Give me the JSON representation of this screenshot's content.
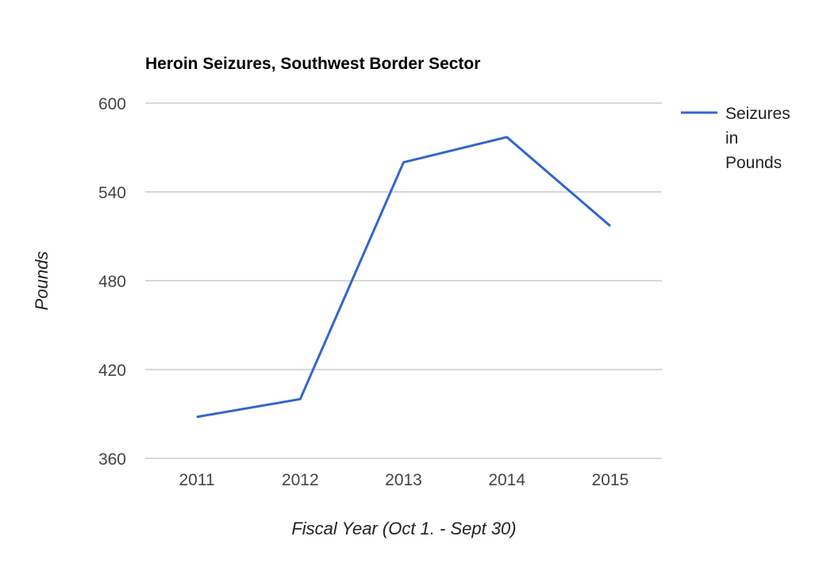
{
  "chart_data": {
    "type": "line",
    "title": "Heroin Seizures, Southwest Border Sector",
    "xlabel": "Fiscal Year (Oct 1. - Sept 30)",
    "ylabel": "Pounds",
    "categories": [
      "2011",
      "2012",
      "2013",
      "2014",
      "2015"
    ],
    "series": [
      {
        "name": "Seizures in Pounds",
        "legend_lines": [
          "Seizures",
          "in",
          "Pounds"
        ],
        "values": [
          388,
          400,
          560,
          577,
          517
        ],
        "color": "#3366cc"
      }
    ],
    "ylim": [
      360,
      600
    ],
    "yticks": [
      360,
      420,
      480,
      540,
      600
    ],
    "grid": true,
    "legend_position": "right"
  }
}
